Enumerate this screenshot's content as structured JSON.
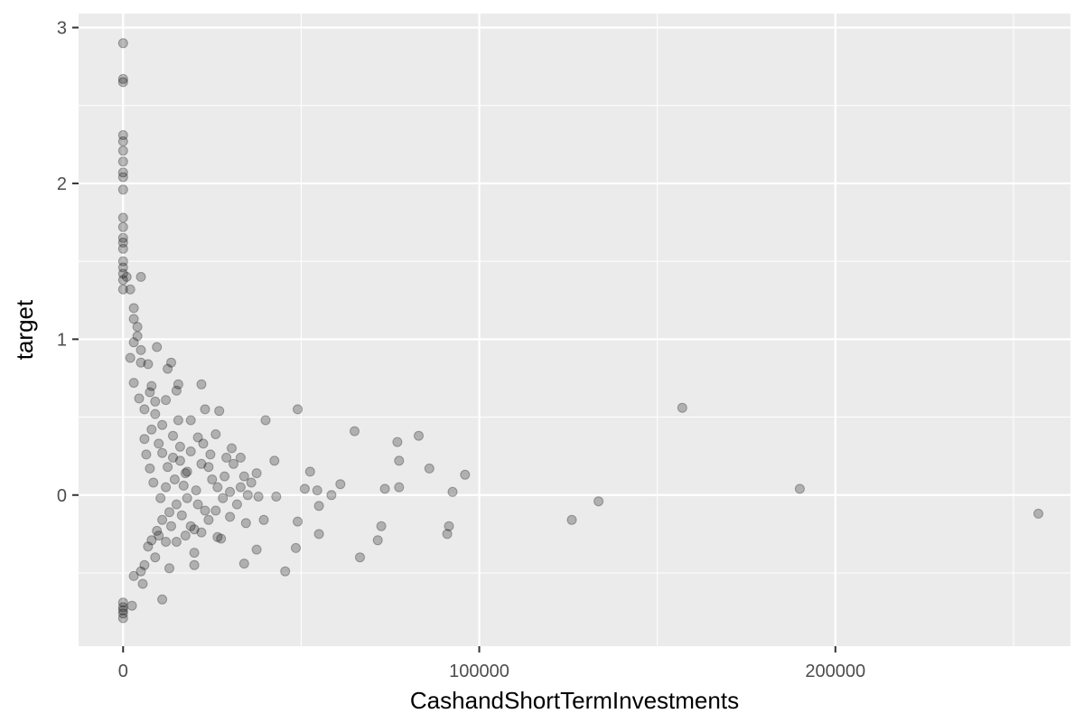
{
  "chart_data": {
    "type": "scatter",
    "title": "",
    "xlabel": "CashandShortTermInvestments",
    "ylabel": "target",
    "xlim": [
      -12500,
      266000
    ],
    "ylim": [
      -0.97,
      3.09
    ],
    "x_ticks": [
      0,
      100000,
      200000
    ],
    "x_tick_labels": [
      "0",
      "100000",
      "200000"
    ],
    "y_ticks": [
      0,
      1,
      2,
      3
    ],
    "y_tick_labels": [
      "0",
      "1",
      "2",
      "3"
    ],
    "x_minor_ticks": [
      50000,
      150000,
      250000
    ],
    "y_minor_ticks": [
      -0.5,
      0.5,
      1.5,
      2.5
    ],
    "grid": true,
    "legend": "none",
    "point_color": "#000000",
    "point_opacity": 0.25,
    "points": [
      [
        0,
        2.9
      ],
      [
        0,
        2.67
      ],
      [
        0,
        2.65
      ],
      [
        0,
        2.31
      ],
      [
        0,
        2.27
      ],
      [
        0,
        2.21
      ],
      [
        0,
        2.14
      ],
      [
        0,
        2.07
      ],
      [
        0,
        2.04
      ],
      [
        0,
        1.96
      ],
      [
        0,
        1.78
      ],
      [
        0,
        1.72
      ],
      [
        0,
        1.65
      ],
      [
        0,
        1.62
      ],
      [
        0,
        1.58
      ],
      [
        0,
        1.5
      ],
      [
        0,
        1.46
      ],
      [
        0,
        1.42
      ],
      [
        0,
        1.38
      ],
      [
        0,
        1.32
      ],
      [
        0,
        -0.69
      ],
      [
        0,
        -0.74
      ],
      [
        0,
        -0.79
      ],
      [
        0,
        -0.76
      ],
      [
        0,
        -0.72
      ],
      [
        1000,
        1.4
      ],
      [
        2000,
        1.32
      ],
      [
        3000,
        1.2
      ],
      [
        5000,
        1.4
      ],
      [
        3000,
        1.13
      ],
      [
        4000,
        1.08
      ],
      [
        4000,
        1.02
      ],
      [
        5000,
        0.93
      ],
      [
        5000,
        0.85
      ],
      [
        3000,
        0.98
      ],
      [
        2000,
        0.88
      ],
      [
        3000,
        0.72
      ],
      [
        7000,
        0.84
      ],
      [
        8000,
        0.7
      ],
      [
        9500,
        0.95
      ],
      [
        12500,
        0.81
      ],
      [
        13500,
        0.85
      ],
      [
        15500,
        0.71
      ],
      [
        15000,
        0.67
      ],
      [
        12000,
        0.61
      ],
      [
        22000,
        0.71
      ],
      [
        23000,
        0.55
      ],
      [
        27000,
        0.54
      ],
      [
        15500,
        0.48
      ],
      [
        19000,
        0.48
      ],
      [
        26000,
        0.39
      ],
      [
        30500,
        0.3
      ],
      [
        40000,
        0.48
      ],
      [
        49000,
        0.55
      ],
      [
        65000,
        0.41
      ],
      [
        77000,
        0.34
      ],
      [
        83000,
        0.38
      ],
      [
        77500,
        0.22
      ],
      [
        86000,
        0.17
      ],
      [
        96000,
        0.13
      ],
      [
        92500,
        0.02
      ],
      [
        73500,
        0.04
      ],
      [
        77500,
        0.05
      ],
      [
        58500,
        0.0
      ],
      [
        61000,
        0.07
      ],
      [
        52500,
        0.15
      ],
      [
        51000,
        0.04
      ],
      [
        54500,
        0.03
      ],
      [
        55000,
        -0.07
      ],
      [
        42500,
        0.22
      ],
      [
        37500,
        0.14
      ],
      [
        36000,
        0.08
      ],
      [
        34000,
        0.12
      ],
      [
        33000,
        0.05
      ],
      [
        43000,
        -0.01
      ],
      [
        38000,
        -0.01
      ],
      [
        32000,
        -0.06
      ],
      [
        28000,
        -0.02
      ],
      [
        26000,
        -0.1
      ],
      [
        30000,
        -0.14
      ],
      [
        34500,
        -0.18
      ],
      [
        39500,
        -0.16
      ],
      [
        49000,
        -0.17
      ],
      [
        72500,
        -0.2
      ],
      [
        71500,
        -0.29
      ],
      [
        91500,
        -0.2
      ],
      [
        91000,
        -0.25
      ],
      [
        55000,
        -0.25
      ],
      [
        48500,
        -0.34
      ],
      [
        37500,
        -0.35
      ],
      [
        34000,
        -0.44
      ],
      [
        27500,
        -0.28
      ],
      [
        26500,
        -0.27
      ],
      [
        66500,
        -0.4
      ],
      [
        45500,
        -0.49
      ],
      [
        20000,
        -0.37
      ],
      [
        20000,
        -0.45
      ],
      [
        13000,
        -0.47
      ],
      [
        11000,
        -0.67
      ],
      [
        9000,
        -0.4
      ],
      [
        6000,
        -0.45
      ],
      [
        5500,
        -0.57
      ],
      [
        5000,
        -0.49
      ],
      [
        3000,
        -0.52
      ],
      [
        2500,
        -0.71
      ],
      [
        126000,
        -0.16
      ],
      [
        133500,
        -0.04
      ],
      [
        157000,
        0.56
      ],
      [
        190000,
        0.04
      ],
      [
        257000,
        -0.12
      ],
      [
        10000,
        0.33
      ],
      [
        11000,
        0.27
      ],
      [
        12500,
        0.18
      ],
      [
        14000,
        0.24
      ],
      [
        16000,
        0.22
      ],
      [
        17500,
        0.14
      ],
      [
        19000,
        0.28
      ],
      [
        21000,
        0.37
      ],
      [
        22500,
        0.33
      ],
      [
        24000,
        0.18
      ],
      [
        25000,
        0.1
      ],
      [
        20500,
        0.03
      ],
      [
        18000,
        -0.02
      ],
      [
        15000,
        -0.06
      ],
      [
        13000,
        -0.11
      ],
      [
        11000,
        -0.16
      ],
      [
        9500,
        -0.23
      ],
      [
        8000,
        -0.29
      ],
      [
        7000,
        -0.33
      ],
      [
        16500,
        -0.13
      ],
      [
        19000,
        -0.2
      ],
      [
        22000,
        -0.24
      ],
      [
        24000,
        -0.16
      ],
      [
        28500,
        0.12
      ],
      [
        31000,
        0.2
      ],
      [
        29000,
        0.24
      ],
      [
        33000,
        0.24
      ],
      [
        24500,
        0.26
      ],
      [
        22000,
        0.2
      ],
      [
        18000,
        0.15
      ],
      [
        14500,
        0.1
      ],
      [
        12000,
        0.05
      ],
      [
        10500,
        -0.02
      ],
      [
        8500,
        0.08
      ],
      [
        7500,
        0.17
      ],
      [
        6500,
        0.26
      ],
      [
        6000,
        0.36
      ],
      [
        8000,
        0.42
      ],
      [
        9000,
        0.52
      ],
      [
        11000,
        0.45
      ],
      [
        14000,
        0.38
      ],
      [
        16000,
        0.31
      ],
      [
        21000,
        -0.06
      ],
      [
        23000,
        -0.1
      ],
      [
        26500,
        0.05
      ],
      [
        30000,
        0.02
      ],
      [
        35000,
        0.0
      ],
      [
        17000,
        0.06
      ],
      [
        13500,
        -0.2
      ],
      [
        10000,
        -0.26
      ],
      [
        12000,
        -0.3
      ],
      [
        15000,
        -0.3
      ],
      [
        17500,
        -0.26
      ],
      [
        20000,
        -0.22
      ],
      [
        9000,
        0.6
      ],
      [
        7500,
        0.66
      ],
      [
        6000,
        0.55
      ],
      [
        4500,
        0.62
      ]
    ]
  }
}
